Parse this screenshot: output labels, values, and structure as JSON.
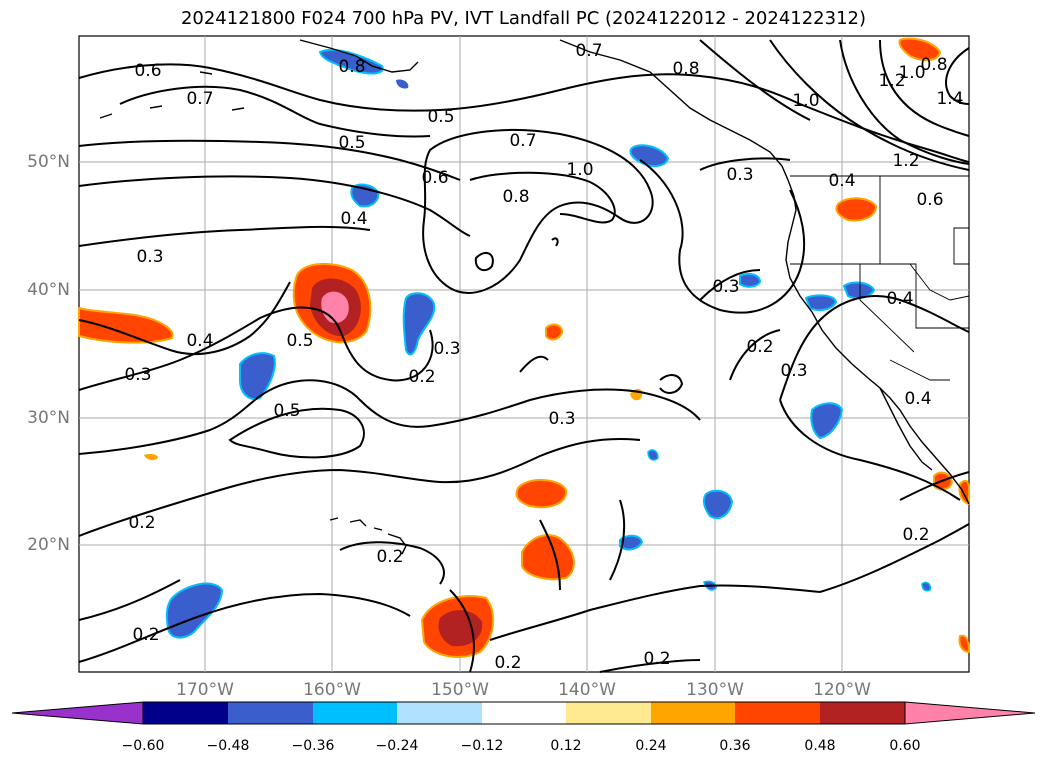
{
  "title": "2024121800 F024 700 hPa PV, IVT Landfall PC (2024122012 - 2024122312)",
  "map": {
    "lat_labels": [
      "50°N",
      "40°N",
      "30°N",
      "20°N"
    ],
    "lon_labels": [
      "170°W",
      "160°W",
      "150°W",
      "140°W",
      "130°W",
      "120°W"
    ],
    "contour_labels": [
      "0.6",
      "0.7",
      "0.5",
      "0.5",
      "0.6",
      "0.7",
      "1.0",
      "0.8",
      "0.7",
      "0.8",
      "1.0",
      "1.2",
      "1.4",
      "1.0",
      "0.8",
      "1.2",
      "0.3",
      "0.4",
      "0.6",
      "0.3",
      "0.4",
      "0.5",
      "0.3",
      "0.3",
      "0.2",
      "0.3",
      "0.2",
      "0.3",
      "0.5",
      "0.3",
      "0.2",
      "0.2",
      "0.2",
      "0.2",
      "0.2",
      "0.4",
      "0.8"
    ]
  },
  "colorbar": {
    "ticks": [
      "−0.60",
      "−0.48",
      "−0.36",
      "−0.24",
      "−0.12",
      "0.12",
      "0.24",
      "0.36",
      "0.48",
      "0.60"
    ],
    "colors": [
      "#9932cc",
      "#00008b",
      "#3a5fcd",
      "#00bfff",
      "#b0e2ff",
      "#ffffff",
      "#ffe991",
      "#ffa500",
      "#ff4500",
      "#b22222",
      "#ff82ab"
    ]
  }
}
